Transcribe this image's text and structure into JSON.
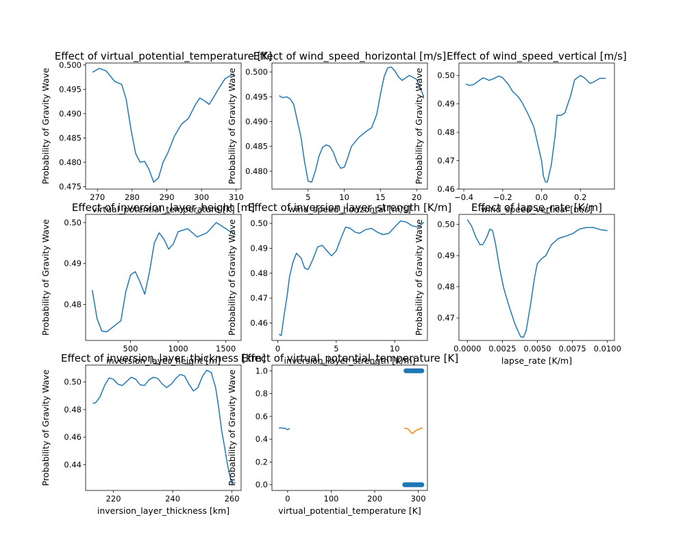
{
  "chart_data": [
    {
      "type": "line",
      "title": "Effect of virtual_potential_temperature [K]",
      "xlabel": "virtual_potential_temperature [K]",
      "ylabel": "Probability of Gravity Wave",
      "xlim": [
        266.6,
        311.4
      ],
      "ylim": [
        0.4745,
        0.5004
      ],
      "xticks": [
        "270",
        "280",
        "290",
        "300",
        "310"
      ],
      "yticks": [
        "0.475",
        "0.480",
        "0.485",
        "0.490",
        "0.495",
        "0.500"
      ],
      "color": "#1f77b4",
      "x": [
        268.6,
        270.5,
        272.5,
        275.0,
        277.0,
        278.3,
        279.6,
        281.0,
        282.3,
        283.6,
        284.9,
        286.2,
        287.6,
        288.9,
        290.2,
        292.2,
        294.2,
        296.2,
        298.2,
        299.5,
        300.9,
        302.2,
        303.5,
        304.8,
        306.8,
        308.8,
        309.4
      ],
      "y": [
        0.4985,
        0.4993,
        0.4988,
        0.4966,
        0.496,
        0.4929,
        0.487,
        0.4818,
        0.48,
        0.4802,
        0.4785,
        0.4759,
        0.4768,
        0.48,
        0.4818,
        0.4854,
        0.4878,
        0.489,
        0.4918,
        0.4932,
        0.4926,
        0.4919,
        0.4934,
        0.495,
        0.4972,
        0.498,
        0.4982
      ]
    },
    {
      "type": "line",
      "title": "Effect of wind_speed_horizontal [m/s]",
      "xlabel": "wind_speed_horizontal [m/s]",
      "ylabel": "Probability of Gravity Wave",
      "xlim": [
        0.0,
        21.5
      ],
      "ylim": [
        0.4764,
        0.5018
      ],
      "xticks": [
        "5",
        "10",
        "15",
        "20"
      ],
      "yticks": [
        "0.480",
        "0.485",
        "0.490",
        "0.495",
        "0.500"
      ],
      "color": "#1f77b4",
      "x": [
        1.0,
        1.5,
        2.0,
        2.5,
        3.0,
        4.0,
        4.5,
        5.0,
        5.5,
        6.0,
        6.5,
        7.0,
        7.5,
        8.0,
        8.5,
        9.0,
        9.5,
        10.0,
        10.5,
        11.0,
        12.0,
        13.0,
        13.8,
        14.5,
        15.0,
        15.5,
        16.0,
        16.5,
        17.0,
        17.5,
        18.0,
        19.0,
        20.0,
        21.0
      ],
      "y": [
        0.4952,
        0.4948,
        0.495,
        0.4946,
        0.4935,
        0.487,
        0.482,
        0.478,
        0.4778,
        0.48,
        0.483,
        0.4848,
        0.4853,
        0.485,
        0.4838,
        0.4818,
        0.4806,
        0.4808,
        0.4828,
        0.485,
        0.4868,
        0.488,
        0.4888,
        0.4915,
        0.4955,
        0.499,
        0.5008,
        0.501,
        0.5002,
        0.499,
        0.4983,
        0.4993,
        0.4985,
        0.495
      ]
    },
    {
      "type": "line",
      "title": "Effect of wind_speed_vertical [m/s]",
      "xlabel": "wind_speed_vertical [m/s]",
      "ylabel": "Probability of Gravity Wave",
      "xlim": [
        -0.425,
        0.375
      ],
      "ylim": [
        0.46,
        0.5044
      ],
      "xticks": [
        "−0.4",
        "−0.2",
        "0.0",
        "0.2"
      ],
      "xtick_values": [
        -0.4,
        -0.2,
        0.0,
        0.2
      ],
      "yticks": [
        "0.46",
        "0.47",
        "0.48",
        "0.49",
        "0.50"
      ],
      "color": "#1f77b4",
      "x": [
        -0.39,
        -0.37,
        -0.35,
        -0.32,
        -0.3,
        -0.27,
        -0.25,
        -0.22,
        -0.2,
        -0.17,
        -0.15,
        -0.12,
        -0.1,
        -0.07,
        -0.04,
        -0.02,
        0.0,
        0.01,
        0.02,
        0.03,
        0.05,
        0.07,
        0.08,
        0.1,
        0.12,
        0.15,
        0.17,
        0.2,
        0.22,
        0.25,
        0.27,
        0.3,
        0.33
      ],
      "y": [
        0.497,
        0.4965,
        0.4968,
        0.4983,
        0.4992,
        0.4983,
        0.4988,
        0.4998,
        0.4992,
        0.4968,
        0.4945,
        0.4925,
        0.4905,
        0.4865,
        0.482,
        0.476,
        0.47,
        0.4645,
        0.4625,
        0.4625,
        0.4685,
        0.479,
        0.486,
        0.486,
        0.4868,
        0.493,
        0.4985,
        0.5,
        0.4992,
        0.4972,
        0.4978,
        0.499,
        0.499
      ]
    },
    {
      "type": "line",
      "title": "Effect of inversion_layer_height [m]",
      "xlabel": "inversion_layer_height [m]",
      "ylabel": "Probability of Gravity Wave",
      "xlim": [
        30,
        1660
      ],
      "ylim": [
        0.4712,
        0.502
      ],
      "xticks": [
        "500",
        "1000",
        "1500"
      ],
      "yticks": [
        "0.48",
        "0.49",
        "0.50"
      ],
      "color": "#1f77b4",
      "x": [
        100,
        150,
        200,
        250,
        300,
        400,
        450,
        500,
        550,
        600,
        650,
        700,
        750,
        800,
        850,
        900,
        950,
        1000,
        1100,
        1200,
        1300,
        1400,
        1500,
        1600
      ],
      "y": [
        0.4835,
        0.4765,
        0.4735,
        0.4733,
        0.4742,
        0.476,
        0.483,
        0.4872,
        0.488,
        0.4855,
        0.4825,
        0.488,
        0.495,
        0.4975,
        0.496,
        0.4935,
        0.4948,
        0.4978,
        0.4985,
        0.4965,
        0.4975,
        0.5,
        0.4985,
        0.497
      ]
    },
    {
      "type": "line",
      "title": "Effect of inversion_layer_strength [K/m]",
      "xlabel": "inversion_layer_strength [K/m]",
      "ylabel": "Probability of Gravity Wave",
      "xlim": [
        -0.5,
        12.8
      ],
      "ylim": [
        0.453,
        0.5036
      ],
      "xticks": [
        "0",
        "5",
        "10"
      ],
      "yticks": [
        "0.46",
        "0.47",
        "0.48",
        "0.49",
        "0.50"
      ],
      "color": "#1f77b4",
      "x": [
        0.1,
        0.3,
        0.5,
        0.8,
        1.0,
        1.3,
        1.6,
        2.0,
        2.3,
        2.6,
        3.0,
        3.4,
        3.8,
        4.2,
        4.6,
        5.0,
        5.4,
        5.8,
        6.2,
        6.6,
        7.0,
        7.5,
        8.0,
        8.5,
        9.0,
        9.5,
        10.0,
        10.5,
        11.0,
        11.5,
        12.0,
        12.5
      ],
      "y": [
        0.4555,
        0.455,
        0.462,
        0.471,
        0.4785,
        0.4845,
        0.488,
        0.486,
        0.482,
        0.4815,
        0.4855,
        0.4905,
        0.4912,
        0.489,
        0.487,
        0.489,
        0.494,
        0.4985,
        0.498,
        0.4965,
        0.496,
        0.4975,
        0.498,
        0.4965,
        0.4955,
        0.496,
        0.4985,
        0.501,
        0.5005,
        0.499,
        0.4985,
        0.5005
      ]
    },
    {
      "type": "line",
      "title": "Effect of lapse_rate [K/m]",
      "xlabel": "lapse_rate [K/m]",
      "ylabel": "Probability of Gravity Wave",
      "xlim": [
        -0.0006,
        0.0105
      ],
      "ylim": [
        0.4628,
        0.5032
      ],
      "xticks": [
        "0.0000",
        "0.0025",
        "0.0050",
        "0.0075",
        "0.0100"
      ],
      "yticks": [
        "0.47",
        "0.48",
        "0.49",
        "0.50"
      ],
      "color": "#1f77b4",
      "x": [
        0.0,
        0.0003,
        0.0006,
        0.0009,
        0.0011,
        0.0014,
        0.0016,
        0.0018,
        0.002,
        0.0023,
        0.0026,
        0.003,
        0.0034,
        0.0038,
        0.004,
        0.0042,
        0.0045,
        0.0048,
        0.005,
        0.0053,
        0.0056,
        0.006,
        0.0065,
        0.007,
        0.0075,
        0.008,
        0.0085,
        0.009,
        0.0095,
        0.01
      ],
      "y": [
        0.5015,
        0.4995,
        0.496,
        0.4935,
        0.4935,
        0.496,
        0.4985,
        0.498,
        0.494,
        0.486,
        0.4795,
        0.4735,
        0.468,
        0.464,
        0.4638,
        0.466,
        0.474,
        0.483,
        0.4875,
        0.489,
        0.49,
        0.4935,
        0.4955,
        0.4962,
        0.497,
        0.4985,
        0.499,
        0.499,
        0.4983,
        0.498
      ]
    },
    {
      "type": "line",
      "title": "Effect of inversion_layer_thickness [km]",
      "xlabel": "inversion_layer_thickness [km]",
      "ylabel": "Probability of Gravity Wave",
      "xlim": [
        210.6,
        263.1
      ],
      "ylim": [
        0.4213,
        0.5123
      ],
      "xticks": [
        "220",
        "240",
        "260"
      ],
      "yticks": [
        "0.44",
        "0.46",
        "0.48",
        "0.50"
      ],
      "color": "#1f77b4",
      "x": [
        213.0,
        214.0,
        215.5,
        217.0,
        218.5,
        220.0,
        221.5,
        223.0,
        224.5,
        226.0,
        227.5,
        229.0,
        230.5,
        232.0,
        233.5,
        235.0,
        236.5,
        238.0,
        239.5,
        241.0,
        242.5,
        244.0,
        245.5,
        247.0,
        248.5,
        250.0,
        251.5,
        253.0,
        254.5,
        255.5,
        256.5,
        257.5,
        258.5,
        259.5,
        260.5,
        261.2
      ],
      "y": [
        0.4845,
        0.485,
        0.4895,
        0.4975,
        0.503,
        0.502,
        0.4985,
        0.4975,
        0.5005,
        0.5035,
        0.502,
        0.498,
        0.4975,
        0.5015,
        0.5035,
        0.5025,
        0.4985,
        0.496,
        0.4985,
        0.5025,
        0.5055,
        0.5045,
        0.4985,
        0.4935,
        0.496,
        0.504,
        0.5085,
        0.507,
        0.496,
        0.482,
        0.465,
        0.453,
        0.44,
        0.43,
        0.4265,
        0.4268
      ]
    },
    {
      "type": "scatter",
      "title": "Effect of virtual_potential_temperature [K]",
      "xlabel": "virtual_potential_temperature [K]",
      "ylabel": "Probability of Gravity Wave",
      "xlim": [
        -36,
        321
      ],
      "ylim": [
        -0.05,
        1.05
      ],
      "xticks": [
        "0",
        "100",
        "200",
        "300"
      ],
      "yticks": [
        "0.0",
        "0.2",
        "0.4",
        "0.6",
        "0.8",
        "1.0"
      ],
      "points_top": {
        "y": 1.0,
        "x": [
          272,
          276,
          280,
          284,
          287,
          290,
          293,
          296,
          299,
          302,
          305,
          308
        ]
      },
      "points_bottom": {
        "y": 0.0,
        "x": [
          269,
          272,
          275,
          278,
          281,
          284,
          287,
          290,
          293,
          296,
          299,
          302,
          305,
          308
        ]
      },
      "points_color": "#1f77b4",
      "blue_line": {
        "x": [
          -20,
          -15,
          -10,
          -5,
          -2,
          0,
          2,
          5
        ],
        "y": [
          0.5,
          0.498,
          0.497,
          0.494,
          0.488,
          0.483,
          0.487,
          0.495
        ]
      },
      "orange_line": {
        "color": "#ff7f0e",
        "x": [
          268,
          272,
          276,
          280,
          284,
          288,
          292,
          296,
          300,
          304,
          308,
          310
        ],
        "y": [
          0.495,
          0.495,
          0.49,
          0.475,
          0.455,
          0.45,
          0.47,
          0.48,
          0.482,
          0.492,
          0.497,
          0.497
        ]
      }
    }
  ]
}
